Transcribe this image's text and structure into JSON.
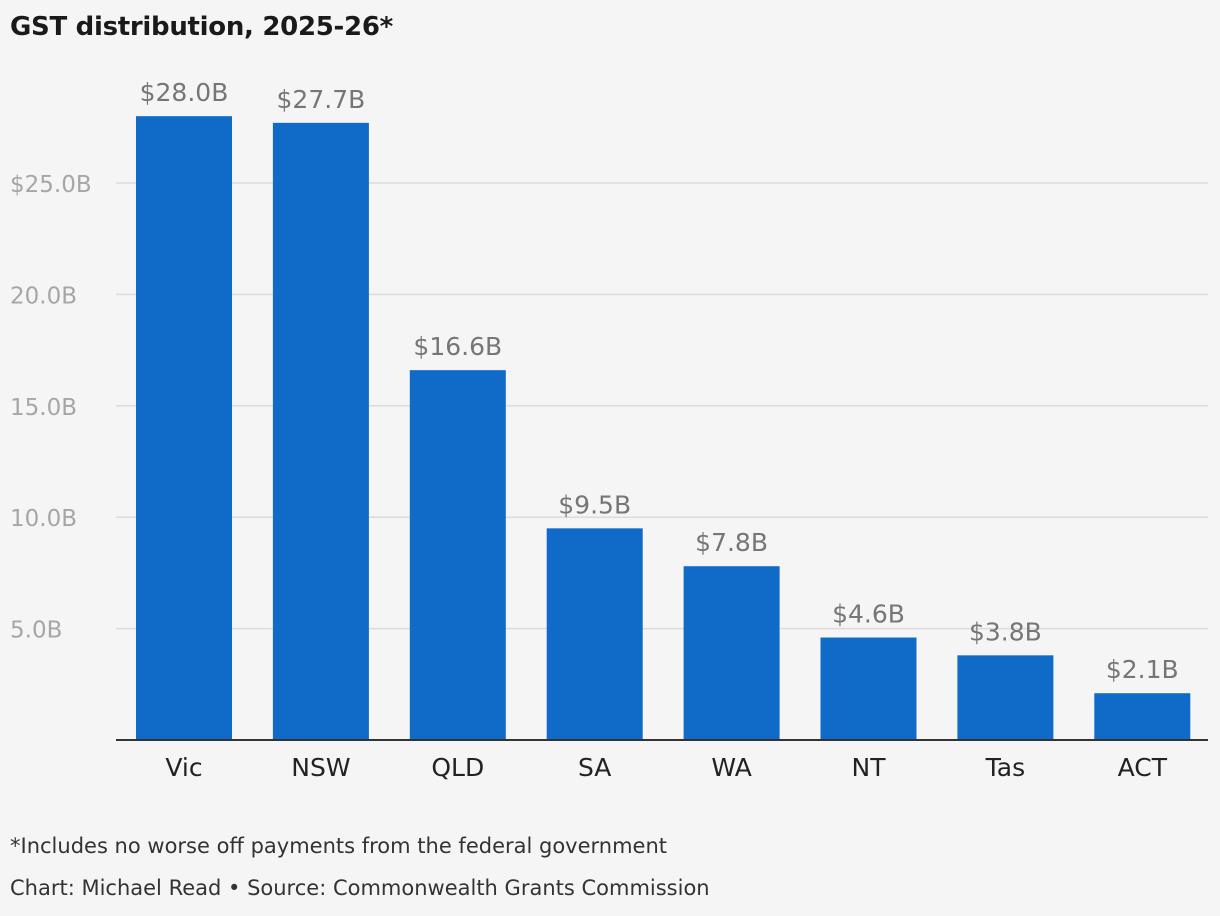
{
  "chart_data": {
    "type": "bar",
    "title": "GST distribution, 2025-26*",
    "categories": [
      "Vic",
      "NSW",
      "QLD",
      "SA",
      "WA",
      "NT",
      "Tas",
      "ACT"
    ],
    "values": [
      28.0,
      27.7,
      16.6,
      9.5,
      7.8,
      4.6,
      3.8,
      2.1
    ],
    "value_labels": [
      "$28.0B",
      "$27.7B",
      "$16.6B",
      "$9.5B",
      "$7.8B",
      "$4.6B",
      "$3.8B",
      "$2.1B"
    ],
    "y_ticks": [
      5,
      10,
      15,
      20,
      25
    ],
    "y_tick_labels": [
      "5.0B",
      "10.0B",
      "15.0B",
      "20.0B",
      "$25.0B"
    ],
    "ylim": [
      0,
      30
    ],
    "grid": true,
    "bar_color": "#0f6bc7",
    "grid_color": "#dcdcdc",
    "axis_color": "#333333",
    "tick_label_color": "#a6a6a6",
    "value_label_color": "#767676"
  },
  "footnote": "*Includes no worse off payments from the federal government",
  "credit": "Chart: Michael Read • Source: Commonwealth Grants Commission"
}
